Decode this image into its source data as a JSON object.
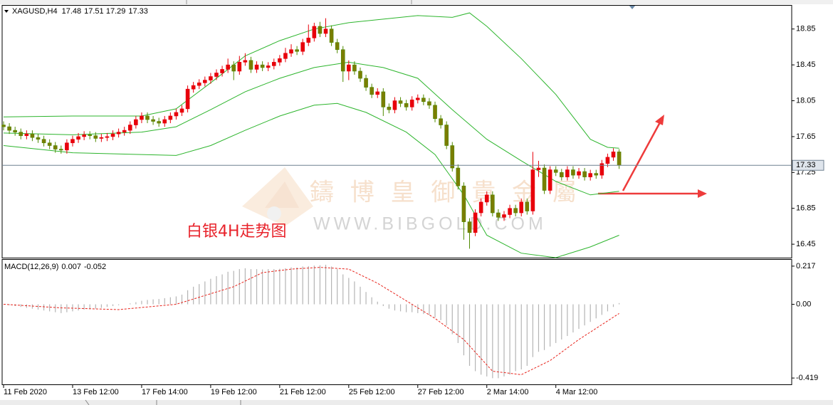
{
  "chart_data": [
    {
      "type": "candlestick",
      "symbol": "XAGUSD,H4",
      "up_color": "#e8000b",
      "down_color": "#7a7d00",
      "down_wick_color": "#4f8a00",
      "open": [
        17.78,
        17.76,
        17.72,
        17.7,
        17.66,
        17.68,
        17.64,
        17.62,
        17.58,
        17.55,
        17.51,
        17.5,
        17.58,
        17.62,
        17.65,
        17.67,
        17.66,
        17.63,
        17.64,
        17.65,
        17.68,
        17.7,
        17.72,
        17.78,
        17.84,
        17.88,
        17.84,
        17.82,
        17.8,
        17.84,
        17.88,
        17.92,
        17.96,
        18.18,
        18.22,
        18.25,
        18.28,
        18.32,
        18.36,
        18.4,
        18.45,
        18.38,
        18.48,
        18.5,
        18.4,
        18.45,
        18.42,
        18.44,
        18.48,
        18.52,
        18.58,
        18.62,
        18.6,
        18.7,
        18.75,
        18.88,
        18.8,
        18.85,
        18.7,
        18.62,
        18.38,
        18.45,
        18.38,
        18.3,
        18.2,
        18.12,
        18.15,
        17.98,
        17.95,
        18.05,
        18.02,
        17.98,
        18.06,
        18.08,
        18.04,
        18.0,
        17.85,
        17.78,
        17.55,
        17.3,
        17.1,
        16.7,
        16.58,
        16.8,
        16.92,
        17.0,
        16.8,
        16.75,
        16.78,
        16.85,
        16.8,
        16.92,
        16.82,
        17.28,
        17.3,
        17.05,
        17.28,
        17.25,
        17.2,
        17.28,
        17.22,
        17.26,
        17.2,
        17.24,
        17.22,
        17.35,
        17.42,
        17.48
      ],
      "high": [
        17.82,
        17.8,
        17.76,
        17.74,
        17.72,
        17.72,
        17.68,
        17.66,
        17.62,
        17.59,
        17.55,
        17.62,
        17.66,
        17.69,
        17.71,
        17.71,
        17.7,
        17.68,
        17.69,
        17.72,
        17.74,
        17.76,
        17.82,
        17.88,
        17.92,
        17.92,
        17.88,
        17.86,
        17.88,
        17.92,
        17.96,
        18.0,
        18.22,
        18.26,
        18.29,
        18.32,
        18.36,
        18.4,
        18.44,
        18.52,
        18.49,
        18.55,
        18.58,
        18.54,
        18.49,
        18.49,
        18.48,
        18.52,
        18.56,
        18.64,
        18.68,
        18.66,
        18.74,
        18.9,
        18.92,
        18.93,
        18.97,
        18.89,
        18.74,
        18.66,
        18.5,
        18.49,
        18.42,
        18.34,
        18.24,
        18.19,
        18.19,
        18.02,
        18.09,
        18.09,
        18.06,
        18.1,
        18.12,
        18.12,
        18.08,
        18.04,
        17.89,
        17.82,
        17.59,
        17.34,
        17.14,
        16.74,
        16.84,
        16.96,
        17.04,
        17.04,
        16.84,
        16.82,
        16.89,
        16.89,
        16.96,
        16.96,
        17.48,
        17.38,
        17.34,
        17.32,
        17.32,
        17.29,
        17.32,
        17.32,
        17.3,
        17.3,
        17.28,
        17.28,
        17.39,
        17.46,
        17.52,
        17.51
      ],
      "low": [
        17.72,
        17.68,
        17.66,
        17.62,
        17.62,
        17.6,
        17.58,
        17.54,
        17.51,
        17.47,
        17.46,
        17.46,
        17.54,
        17.58,
        17.61,
        17.62,
        17.59,
        17.59,
        17.6,
        17.61,
        17.64,
        17.66,
        17.68,
        17.74,
        17.8,
        17.8,
        17.78,
        17.76,
        17.76,
        17.8,
        17.84,
        17.88,
        17.92,
        18.14,
        18.18,
        18.21,
        18.24,
        18.28,
        18.32,
        18.36,
        18.28,
        18.34,
        18.44,
        18.36,
        18.36,
        18.38,
        18.38,
        18.4,
        18.44,
        18.48,
        18.54,
        18.56,
        18.56,
        18.66,
        18.71,
        18.76,
        18.76,
        18.66,
        18.58,
        18.26,
        18.28,
        18.34,
        18.26,
        18.16,
        18.08,
        18.08,
        17.88,
        17.91,
        17.91,
        17.98,
        17.94,
        17.94,
        18.02,
        18.0,
        17.96,
        17.81,
        17.74,
        17.51,
        17.26,
        17.06,
        16.5,
        16.4,
        16.54,
        16.76,
        16.88,
        16.76,
        16.71,
        16.71,
        16.74,
        16.76,
        16.76,
        16.78,
        16.78,
        17.2,
        17.01,
        17.01,
        17.21,
        17.16,
        17.16,
        17.18,
        17.18,
        17.16,
        17.16,
        17.18,
        17.18,
        17.31,
        17.38,
        17.29
      ],
      "close": [
        17.76,
        17.72,
        17.7,
        17.66,
        17.68,
        17.64,
        17.62,
        17.58,
        17.55,
        17.51,
        17.5,
        17.58,
        17.62,
        17.65,
        17.67,
        17.66,
        17.63,
        17.64,
        17.65,
        17.68,
        17.7,
        17.72,
        17.78,
        17.84,
        17.88,
        17.84,
        17.82,
        17.8,
        17.84,
        17.88,
        17.92,
        17.96,
        18.18,
        18.22,
        18.25,
        18.28,
        18.32,
        18.36,
        18.4,
        18.45,
        18.38,
        18.48,
        18.5,
        18.4,
        18.45,
        18.42,
        18.44,
        18.48,
        18.52,
        18.58,
        18.62,
        18.6,
        18.7,
        18.75,
        18.88,
        18.8,
        18.85,
        18.7,
        18.62,
        18.38,
        18.45,
        18.38,
        18.3,
        18.2,
        18.12,
        18.15,
        17.98,
        17.95,
        18.05,
        18.02,
        17.98,
        18.06,
        18.08,
        18.04,
        18.0,
        17.85,
        17.78,
        17.55,
        17.3,
        17.1,
        16.7,
        16.58,
        16.8,
        16.92,
        17.0,
        16.8,
        16.75,
        16.78,
        16.85,
        16.8,
        16.92,
        16.82,
        17.28,
        17.3,
        17.05,
        17.28,
        17.25,
        17.2,
        17.28,
        17.22,
        17.26,
        17.2,
        17.24,
        17.22,
        17.35,
        17.42,
        17.48,
        17.33
      ],
      "bands": {
        "color": "#2db52d",
        "lines": [
          {
            "x": [
              0,
              12,
              24,
              30,
              36,
              42,
              48,
              54,
              60,
              66,
              72,
              78,
              81,
              84,
              90,
              96,
              102,
              105,
              107
            ],
            "values": [
              17.87,
              17.88,
              17.88,
              17.96,
              18.25,
              18.55,
              18.72,
              18.85,
              18.92,
              18.96,
              19.0,
              18.98,
              19.03,
              18.88,
              18.52,
              18.12,
              17.62,
              17.53,
              17.52
            ]
          },
          {
            "x": [
              0,
              12,
              24,
              30,
              36,
              42,
              48,
              54,
              60,
              66,
              72,
              78,
              84,
              90,
              96,
              102,
              107
            ],
            "values": [
              17.69,
              17.67,
              17.7,
              17.76,
              17.95,
              18.15,
              18.3,
              18.42,
              18.48,
              18.42,
              18.3,
              17.95,
              17.62,
              17.38,
              17.15,
              17.0,
              17.04
            ]
          },
          {
            "x": [
              0,
              12,
              24,
              30,
              36,
              42,
              48,
              54,
              58,
              63,
              70,
              75,
              80,
              84,
              90,
              96,
              102,
              107
            ],
            "values": [
              17.55,
              17.47,
              17.45,
              17.44,
              17.55,
              17.72,
              17.88,
              18.0,
              18.02,
              17.92,
              17.7,
              17.45,
              17.0,
              16.55,
              16.35,
              16.3,
              16.42,
              16.55
            ]
          }
        ]
      },
      "price_line_color": "#6f8090",
      "ylim": [
        16.3,
        19.11
      ],
      "yticks": [
        18.85,
        18.45,
        18.05,
        17.65,
        17.25,
        16.85,
        16.45
      ],
      "watermark_title": "鑄 博 皇 御 貴 金 屬",
      "watermark_url": "WWW.BIBGOLD.COM",
      "annotation": "白银4H走势图"
    },
    {
      "type": "macd",
      "title": "MACD(12,26,9)",
      "color": "#b4b4b4",
      "values": [
        0.0,
        -0.005,
        -0.01,
        -0.015,
        -0.02,
        -0.025,
        -0.03,
        -0.035,
        -0.04,
        -0.045,
        -0.05,
        -0.045,
        -0.04,
        -0.035,
        -0.03,
        -0.028,
        -0.025,
        -0.02,
        -0.015,
        -0.01,
        -0.005,
        0.0,
        0.005,
        0.012,
        0.02,
        0.025,
        0.028,
        0.03,
        0.035,
        0.04,
        0.045,
        0.055,
        0.08,
        0.1,
        0.115,
        0.13,
        0.145,
        0.16,
        0.17,
        0.185,
        0.19,
        0.2,
        0.205,
        0.2,
        0.2,
        0.198,
        0.2,
        0.2,
        0.202,
        0.205,
        0.21,
        0.21,
        0.215,
        0.217,
        0.22,
        0.222,
        0.225,
        0.215,
        0.2,
        0.17,
        0.15,
        0.13,
        0.1,
        0.07,
        0.04,
        0.015,
        -0.01,
        -0.025,
        -0.035,
        -0.04,
        -0.045,
        -0.045,
        -0.05,
        -0.055,
        -0.06,
        -0.075,
        -0.09,
        -0.12,
        -0.17,
        -0.22,
        -0.29,
        -0.35,
        -0.38,
        -0.4,
        -0.41,
        -0.42,
        -0.42,
        -0.41,
        -0.4,
        -0.38,
        -0.37,
        -0.35,
        -0.3,
        -0.27,
        -0.26,
        -0.24,
        -0.22,
        -0.2,
        -0.18,
        -0.16,
        -0.14,
        -0.12,
        -0.1,
        -0.08,
        -0.06,
        -0.04,
        -0.015,
        0.007
      ],
      "signal": {
        "color": "#e8241c",
        "x": [
          0,
          10,
          20,
          30,
          40,
          45,
          50,
          55,
          60,
          65,
          70,
          75,
          80,
          85,
          90,
          95,
          100,
          107
        ],
        "values": [
          0.0,
          -0.02,
          -0.03,
          0.0,
          0.1,
          0.18,
          0.2,
          0.21,
          0.2,
          0.12,
          0.02,
          -0.08,
          -0.2,
          -0.38,
          -0.4,
          -0.32,
          -0.2,
          -0.052
        ]
      },
      "ylim": [
        -0.455,
        0.253
      ],
      "yticks": [
        0.217,
        {
          "value": 0,
          "label": "0.00"
        },
        -0.419
      ],
      "xlim": [
        -0.25,
        137
      ],
      "xticks": [
        {
          "value": 0,
          "label": "11 Feb 2020"
        },
        {
          "value": 12,
          "label": "13 Feb 12:00"
        },
        {
          "value": 24,
          "label": "17 Feb 14:00"
        },
        {
          "value": 36,
          "label": "19 Feb 12:00"
        },
        {
          "value": 48,
          "label": "21 Feb 12:00"
        },
        {
          "value": 60,
          "label": "25 Feb 12:00"
        },
        {
          "value": 72,
          "label": "27 Feb 12:00"
        },
        {
          "value": 84,
          "label": "2 Mar 14:00"
        },
        {
          "value": 96,
          "label": "4 Mar 12:00"
        }
      ]
    }
  ]
}
